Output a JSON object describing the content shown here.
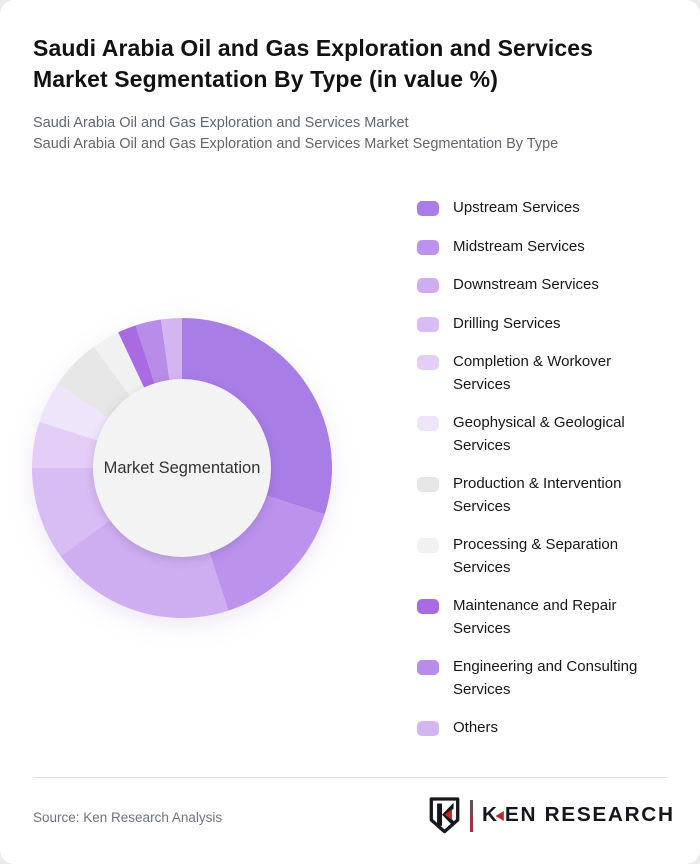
{
  "page": {
    "title": "Saudi Arabia Oil and Gas Exploration and Services Market Segmentation By Type (in value %)",
    "subtitle_line1": "Saudi Arabia Oil and Gas Exploration and Services Market",
    "subtitle_line2": "Saudi Arabia Oil and Gas Exploration and Services Market Segmentation By Type",
    "source": "Source: Ken Research Analysis",
    "brand": {
      "wordmark_k": "K",
      "wordmark_rest": "EN RESEARCH",
      "shield_letter": "K",
      "accent_color": "#c0272d",
      "text_color": "#16161e"
    }
  },
  "chart_data": {
    "type": "pie",
    "subtype": "donut",
    "title": "Saudi Arabia Oil and Gas Exploration and Services Market Segmentation By Type (in value %)",
    "center_label": "Market Segmentation",
    "unit": "%",
    "direction": "clockwise",
    "start_angle_deg": 0,
    "legend_position": "right",
    "categories": [
      "Upstream Services",
      "Midstream Services",
      "Downstream Services",
      "Drilling Services",
      "Completion & Workover Services",
      "Geophysical & Geological Services",
      "Production & Intervention Services",
      "Processing & Separation Services",
      "Maintenance and Repair Services",
      "Engineering and Consulting Services",
      "Others"
    ],
    "values": [
      30,
      15,
      20,
      10,
      5,
      4.5,
      5.5,
      3,
      2,
      2.75,
      2.25
    ],
    "colors": [
      "#a97de6",
      "#bb92ec",
      "#cfadf1",
      "#d8bcf4",
      "#e4cef8",
      "#efe5fb",
      "#e7e6e7",
      "#f2f1f1",
      "#aa6ae1",
      "#b88ce9",
      "#d3b5f2"
    ],
    "hole_color": "#f3f3f3"
  }
}
